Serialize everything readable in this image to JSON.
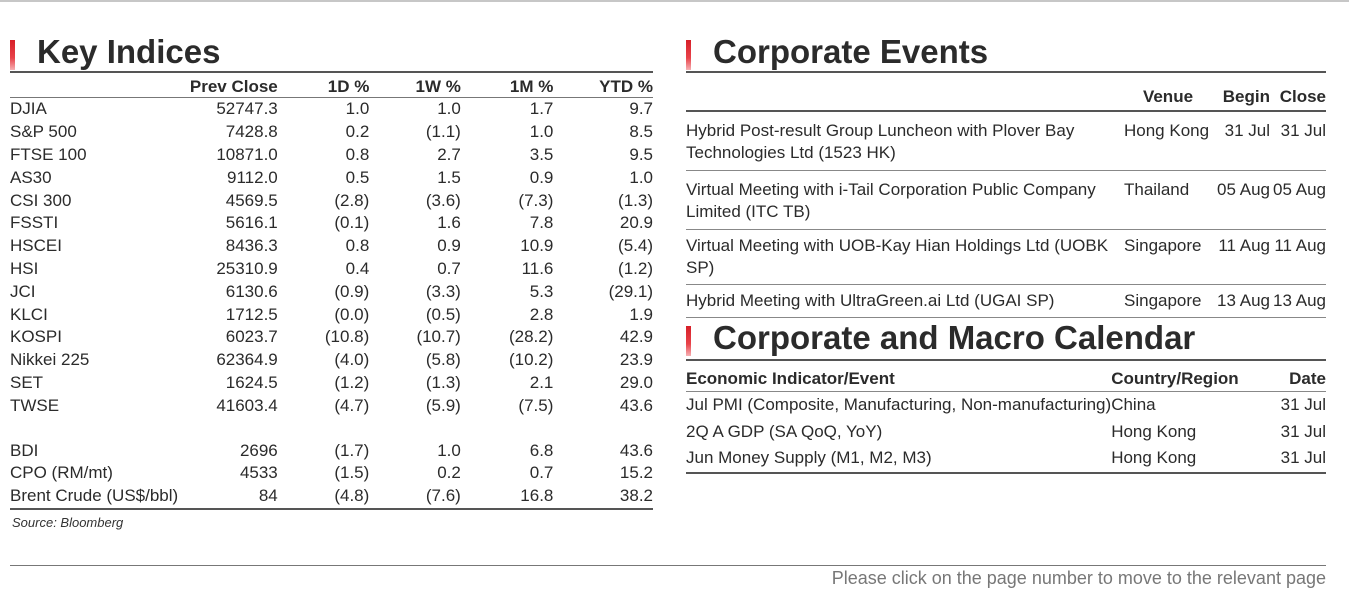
{
  "key_indices": {
    "title": "Key Indices",
    "columns": [
      "",
      "Prev Close",
      "1D %",
      "1W %",
      "1M %",
      "YTD %"
    ],
    "rows": [
      [
        "DJIA",
        "52747.3",
        "1.0",
        "1.0",
        "1.7",
        "9.7"
      ],
      [
        "S&P 500",
        "7428.8",
        "0.2",
        "(1.1)",
        "1.0",
        "8.5"
      ],
      [
        "FTSE 100",
        "10871.0",
        "0.8",
        "2.7",
        "3.5",
        "9.5"
      ],
      [
        "AS30",
        "9112.0",
        "0.5",
        "1.5",
        "0.9",
        "1.0"
      ],
      [
        "CSI 300",
        "4569.5",
        "(2.8)",
        "(3.6)",
        "(7.3)",
        "(1.3)"
      ],
      [
        "FSSTI",
        "5616.1",
        "(0.1)",
        "1.6",
        "7.8",
        "20.9"
      ],
      [
        "HSCEI",
        "8436.3",
        "0.8",
        "0.9",
        "10.9",
        "(5.4)"
      ],
      [
        "HSI",
        "25310.9",
        "0.4",
        "0.7",
        "11.6",
        "(1.2)"
      ],
      [
        "JCI",
        "6130.6",
        "(0.9)",
        "(3.3)",
        "5.3",
        "(29.1)"
      ],
      [
        "KLCI",
        "1712.5",
        "(0.0)",
        "(0.5)",
        "2.8",
        "1.9"
      ],
      [
        "KOSPI",
        "6023.7",
        "(10.8)",
        "(10.7)",
        "(28.2)",
        "42.9"
      ],
      [
        "Nikkei 225",
        "62364.9",
        "(4.0)",
        "(5.8)",
        "(10.2)",
        "23.9"
      ],
      [
        "SET",
        "1624.5",
        "(1.2)",
        "(1.3)",
        "2.1",
        "29.0"
      ],
      [
        "TWSE",
        "41603.4",
        "(4.7)",
        "(5.9)",
        "(7.5)",
        "43.6"
      ]
    ],
    "commodities": [
      [
        "BDI",
        "2696",
        "(1.7)",
        "1.0",
        "6.8",
        "43.6"
      ],
      [
        "CPO (RM/mt)",
        "4533",
        "(1.5)",
        "0.2",
        "0.7",
        "15.2"
      ],
      [
        "Brent Crude (US$/bbl)",
        "84",
        "(4.8)",
        "(7.6)",
        "16.8",
        "38.2"
      ]
    ],
    "source": "Source: Bloomberg"
  },
  "corporate_events": {
    "title": "Corporate Events",
    "columns": [
      "",
      "Venue",
      "Begin",
      "Close"
    ],
    "rows": [
      {
        "event": "Hybrid Post-result Group Luncheon with Plover Bay Technologies Ltd (1523 HK)",
        "venue": "Hong Kong",
        "begin": "31 Jul",
        "close": "31 Jul"
      },
      {
        "event": "Virtual Meeting with i-Tail Corporation Public Company Limited (ITC TB)",
        "venue": "Thailand",
        "begin": "05 Aug",
        "close": "05 Aug"
      },
      {
        "event": "Virtual Meeting with UOB-Kay Hian Holdings Ltd (UOBK SP)",
        "venue": "Singapore",
        "begin": "11 Aug",
        "close": "11 Aug"
      },
      {
        "event": "Hybrid Meeting with UltraGreen.ai Ltd (UGAI SP)",
        "venue": "Singapore",
        "begin": "13 Aug",
        "close": "13 Aug"
      }
    ]
  },
  "calendar": {
    "title": "Corporate and Macro Calendar",
    "columns": [
      "Economic Indicator/Event",
      "Country/Region",
      "Date"
    ],
    "rows": [
      [
        "Jul PMI (Composite, Manufacturing, Non-manufacturing)",
        "China",
        "31 Jul"
      ],
      [
        "2Q A GDP (SA QoQ, YoY)",
        "Hong Kong",
        "31 Jul"
      ],
      [
        "Jun Money Supply (M1, M2, M3)",
        "Hong Kong",
        "31 Jul"
      ]
    ]
  },
  "footer": {
    "text": "Please click on the page number to move to the relevant page"
  },
  "colors": {
    "accent_red": "#d61f28",
    "rule": "#555555",
    "footer_text": "#777777"
  }
}
